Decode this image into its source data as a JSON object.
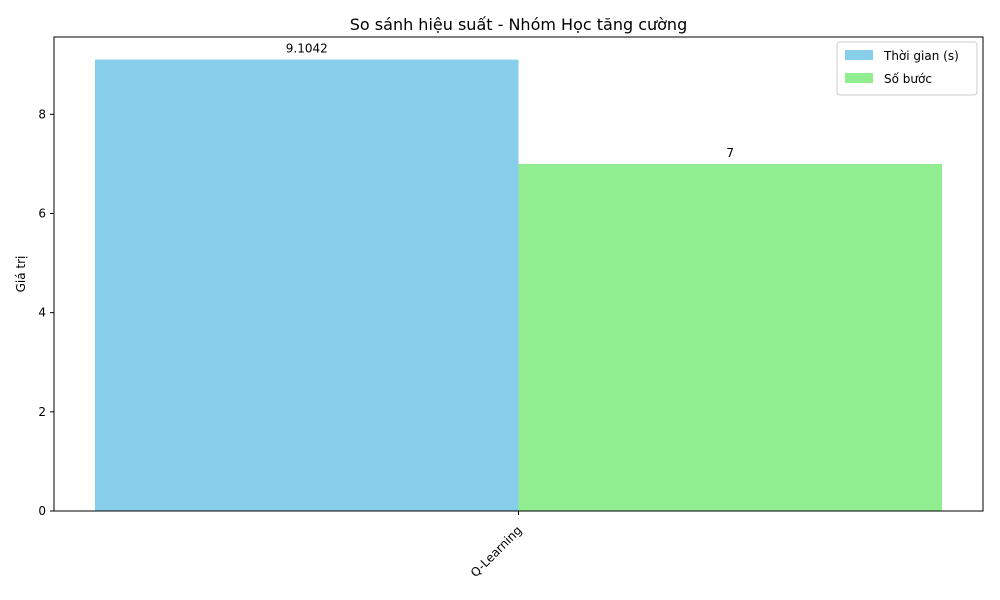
{
  "chart_data": {
    "type": "bar",
    "title": "So sánh hiệu suất - Nhóm Học tăng cường",
    "xlabel": "",
    "ylabel": "Giá trị",
    "categories": [
      "Q-Learning"
    ],
    "series": [
      {
        "name": "Thời gian (s)",
        "values": [
          9.1042
        ],
        "color": "#87ceeb",
        "label": "9.1042"
      },
      {
        "name": "Số bước",
        "values": [
          7
        ],
        "color": "#90ee90",
        "label": "7"
      }
    ],
    "ylim": [
      0,
      9.56
    ],
    "yticks": [
      0,
      2,
      4,
      6,
      8
    ],
    "grid": false,
    "legend": "top-right"
  }
}
